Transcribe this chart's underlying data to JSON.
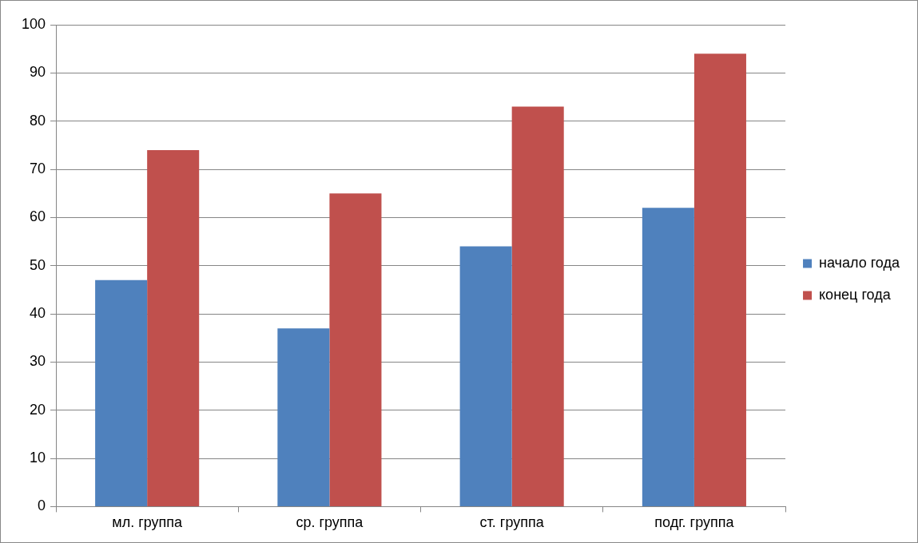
{
  "chart_data": {
    "type": "bar",
    "categories": [
      "мл. группа",
      "ср. группа",
      "ст. группа",
      "подг. группа"
    ],
    "series": [
      {
        "name": "начало года",
        "color": "#4f81bd",
        "values": [
          47,
          37,
          54,
          62
        ]
      },
      {
        "name": "конец года",
        "color": "#c0504d",
        "values": [
          74,
          65,
          83,
          94
        ]
      }
    ],
    "ylim": [
      0,
      100
    ],
    "yticks": [
      0,
      10,
      20,
      30,
      40,
      50,
      60,
      70,
      80,
      90,
      100
    ],
    "grid": "y",
    "legend": "right"
  }
}
